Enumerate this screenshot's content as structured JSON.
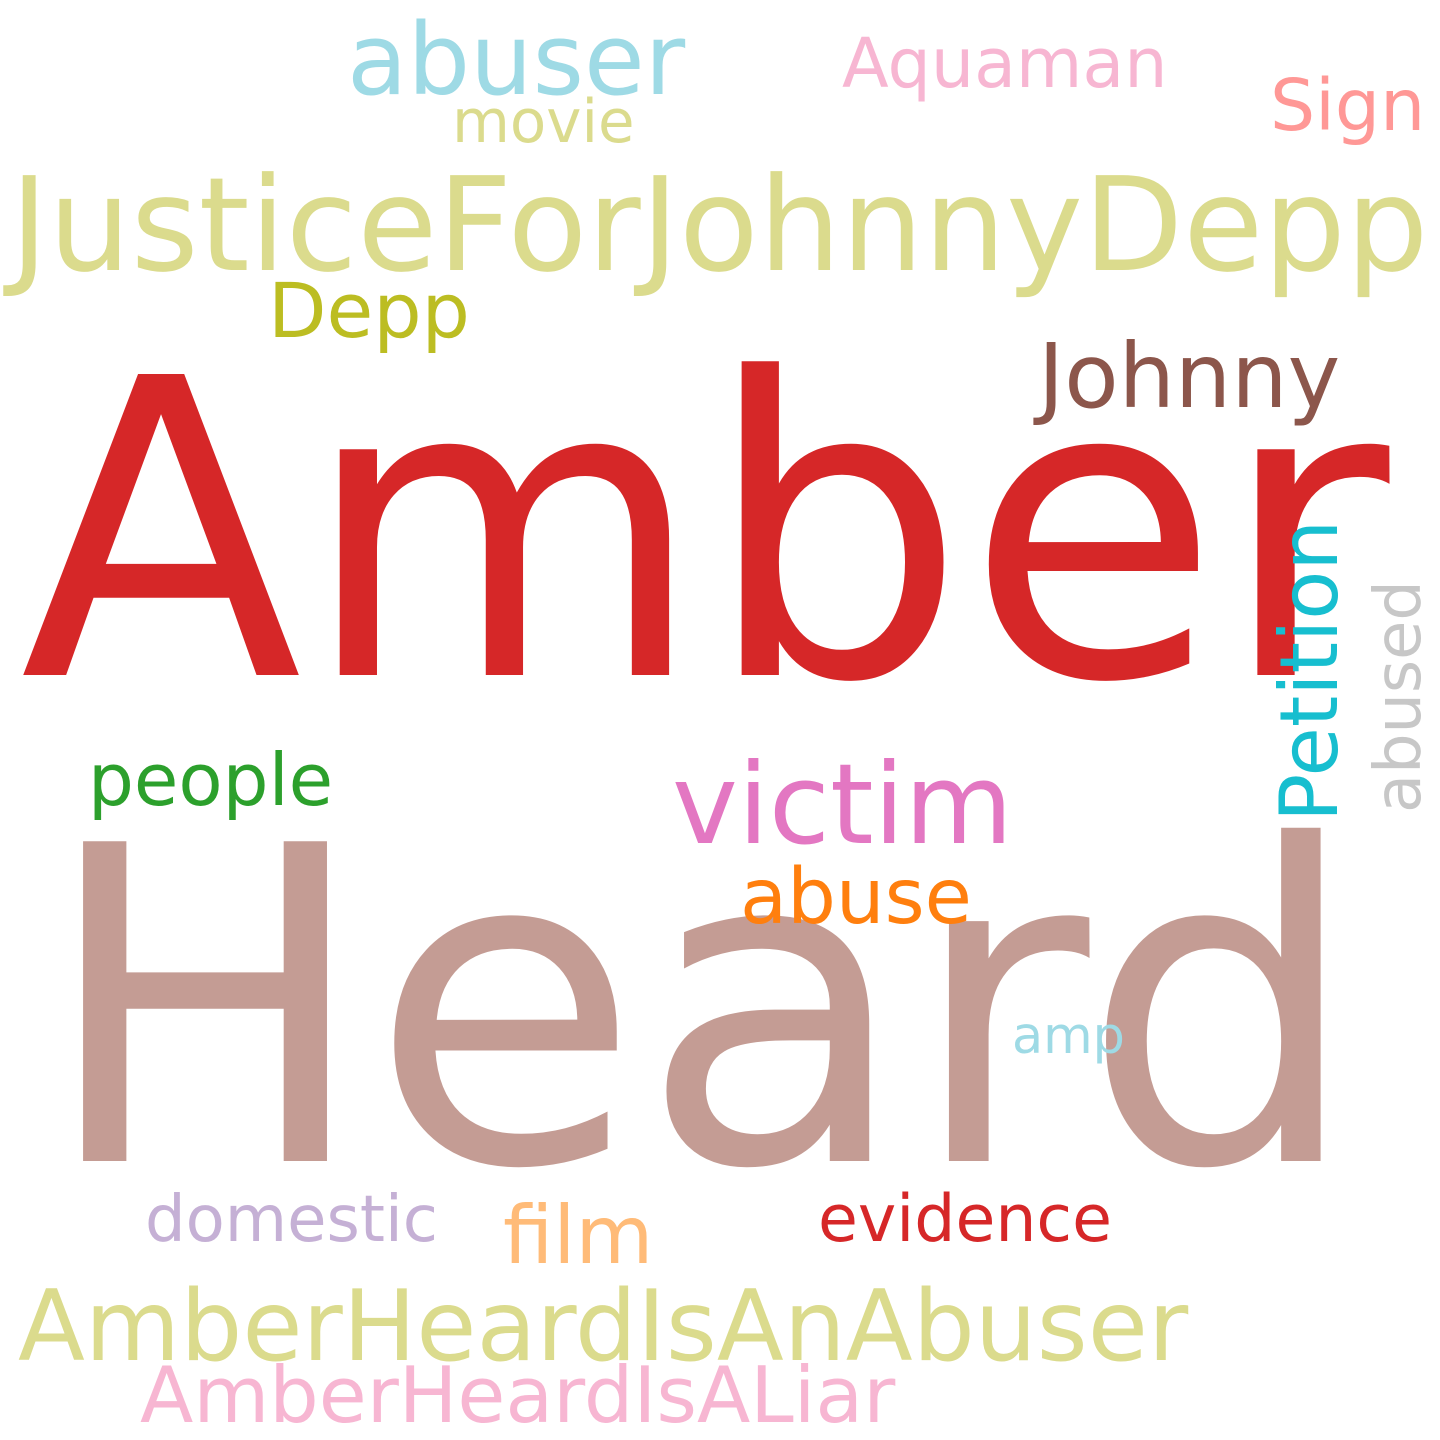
{
  "words": [
    {
      "id": "amber",
      "text": "Amber",
      "color": "#d62728"
    },
    {
      "id": "heard",
      "text": "Heard",
      "color": "#c49c94"
    },
    {
      "id": "justicefor-johnnydepp",
      "text": "JusticeForJohnnyDepp",
      "color": "#dbdb8d"
    },
    {
      "id": "amberheard-is-an-abuser",
      "text": "AmberHeardIsAnAbuser",
      "color": "#dbdb8d"
    },
    {
      "id": "amberheard-is-a-liar",
      "text": "AmberHeardIsALiar",
      "color": "#f7b6d2"
    },
    {
      "id": "abuser",
      "text": "abuser",
      "color": "#9edae5"
    },
    {
      "id": "aquaman",
      "text": "Aquaman",
      "color": "#f7b6d2"
    },
    {
      "id": "sign",
      "text": "Sign",
      "color": "#ff9896"
    },
    {
      "id": "movie",
      "text": "movie",
      "color": "#dbdb8d"
    },
    {
      "id": "depp",
      "text": "Depp",
      "color": "#bcbd22"
    },
    {
      "id": "johnny",
      "text": "Johnny",
      "color": "#8c564b"
    },
    {
      "id": "victim",
      "text": "victim",
      "color": "#e377c2"
    },
    {
      "id": "people",
      "text": "people",
      "color": "#2ca02c"
    },
    {
      "id": "petition",
      "text": "Petition",
      "color": "#17becf"
    },
    {
      "id": "abused",
      "text": "abused",
      "color": "#c7c7c7"
    },
    {
      "id": "abuse",
      "text": "abuse",
      "color": "#ff7f0e"
    },
    {
      "id": "amp",
      "text": "amp",
      "color": "#9edae5"
    },
    {
      "id": "domestic",
      "text": "domestic",
      "color": "#c5b0d5"
    },
    {
      "id": "film",
      "text": "film",
      "color": "#ffbb78"
    },
    {
      "id": "evidence",
      "text": "evidence",
      "color": "#d62728"
    }
  ]
}
